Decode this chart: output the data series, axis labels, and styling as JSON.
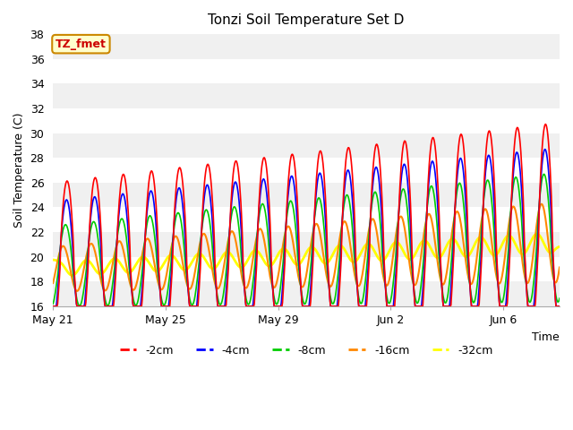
{
  "title": "Tonzi Soil Temperature Set D",
  "xlabel": "Time",
  "ylabel": "Soil Temperature (C)",
  "ylim": [
    16,
    38
  ],
  "annotation": "TZ_fmet",
  "line_colors": [
    "#ff0000",
    "#0000ff",
    "#00cc00",
    "#ff8800",
    "#ffff00"
  ],
  "line_labels": [
    "-2cm",
    "-4cm",
    "-8cm",
    "-16cm",
    "-32cm"
  ],
  "line_widths": [
    1.2,
    1.2,
    1.2,
    1.5,
    2.0
  ],
  "xtick_labels": [
    "May 21",
    "May 25",
    "May 29",
    "Jun 2",
    "Jun 6"
  ],
  "xtick_positions": [
    0,
    4,
    8,
    12,
    16
  ],
  "alternating_colors": [
    "#f0f0f0",
    "#ffffff"
  ],
  "figsize": [
    6.4,
    4.8
  ],
  "dpi": 100
}
